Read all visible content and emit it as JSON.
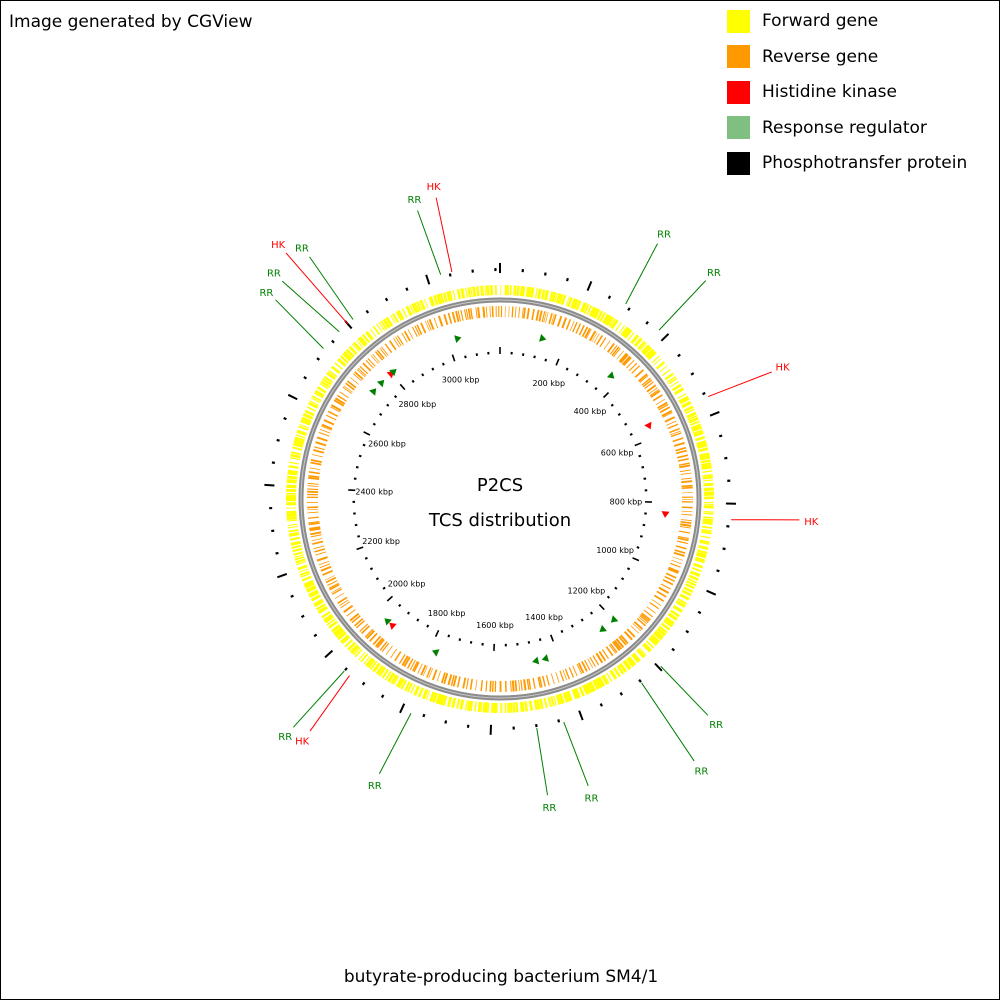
{
  "credit": "Image generated by CGView",
  "caption": "butyrate-producing bacterium SM4/1",
  "center": {
    "line1": "P2CS",
    "line2": "TCS distribution"
  },
  "legend": [
    {
      "label": "Forward gene",
      "color": "#ffff00"
    },
    {
      "label": "Reverse gene",
      "color": "#ff9900"
    },
    {
      "label": "Histidine kinase",
      "color": "#ff0000"
    },
    {
      "label": "Response regulator",
      "color": "#7fbf7f"
    },
    {
      "label": "Phosphotransfer protein",
      "color": "#000000"
    }
  ],
  "colors": {
    "forward_gene": "#ffff00",
    "reverse_gene": "#ff9900",
    "histidine_kinase": "#ff0000",
    "response_regulator": "#008000",
    "backbone": "#8c8c8c",
    "tick": "#000000"
  },
  "genome_length_kbp": 3160,
  "axis_labels": [
    {
      "kbp": 200,
      "text": "200 kbp"
    },
    {
      "kbp": 400,
      "text": "400 kbp"
    },
    {
      "kbp": 600,
      "text": "600 kbp"
    },
    {
      "kbp": 800,
      "text": "800 kbp"
    },
    {
      "kbp": 1000,
      "text": "1000 kbp"
    },
    {
      "kbp": 1200,
      "text": "1200 kbp"
    },
    {
      "kbp": 1400,
      "text": "1400 kbp"
    },
    {
      "kbp": 1600,
      "text": "1600 kbp"
    },
    {
      "kbp": 1800,
      "text": "1800 kbp"
    },
    {
      "kbp": 2000,
      "text": "2000 kbp"
    },
    {
      "kbp": 2200,
      "text": "2200 kbp"
    },
    {
      "kbp": 2400,
      "text": "2400 kbp"
    },
    {
      "kbp": 2600,
      "text": "2600 kbp"
    },
    {
      "kbp": 2800,
      "text": "2800 kbp"
    },
    {
      "kbp": 3000,
      "text": "3000 kbp"
    }
  ],
  "callouts": [
    {
      "text": "RR",
      "type": "RR",
      "kbp": 288
    },
    {
      "text": "RR",
      "type": "RR",
      "kbp": 380
    },
    {
      "text": "HK",
      "type": "HK",
      "kbp": 560
    },
    {
      "text": "HK",
      "type": "HK",
      "kbp": 835
    },
    {
      "text": "RR",
      "type": "RR",
      "kbp": 1195
    },
    {
      "text": "RR",
      "type": "RR",
      "kbp": 1250
    },
    {
      "text": "RR",
      "type": "RR",
      "kbp": 1440
    },
    {
      "text": "RR",
      "type": "RR",
      "kbp": 1500
    },
    {
      "text": "RR",
      "type": "RR",
      "kbp": 1778
    },
    {
      "text": "HK",
      "type": "HK",
      "kbp": 1935
    },
    {
      "text": "RR",
      "type": "RR",
      "kbp": 1950
    },
    {
      "text": "RR",
      "type": "RR",
      "kbp": 2725
    },
    {
      "text": "RR",
      "type": "RR",
      "kbp": 2775
    },
    {
      "text": "HK",
      "type": "HK",
      "kbp": 2800
    },
    {
      "text": "RR",
      "type": "RR",
      "kbp": 2815
    },
    {
      "text": "RR",
      "type": "RR",
      "kbp": 3030
    },
    {
      "text": "HK",
      "type": "HK",
      "kbp": 3055
    }
  ],
  "tcs_markers": [
    {
      "type": "RR",
      "kbp": 130
    },
    {
      "type": "RR",
      "kbp": 370
    },
    {
      "type": "HK",
      "kbp": 560
    },
    {
      "type": "HK",
      "kbp": 835
    },
    {
      "type": "RR",
      "kbp": 1200
    },
    {
      "type": "RR",
      "kbp": 1245
    },
    {
      "type": "RR",
      "kbp": 1440
    },
    {
      "type": "RR",
      "kbp": 1470
    },
    {
      "type": "RR",
      "kbp": 1780
    },
    {
      "type": "HK",
      "kbp": 1935
    },
    {
      "type": "RR",
      "kbp": 1955
    },
    {
      "type": "RR",
      "kbp": 2725
    },
    {
      "type": "RR",
      "kbp": 2760
    },
    {
      "type": "HK",
      "kbp": 2800
    },
    {
      "type": "RR",
      "kbp": 2810
    },
    {
      "type": "RR",
      "kbp": 3030
    }
  ]
}
